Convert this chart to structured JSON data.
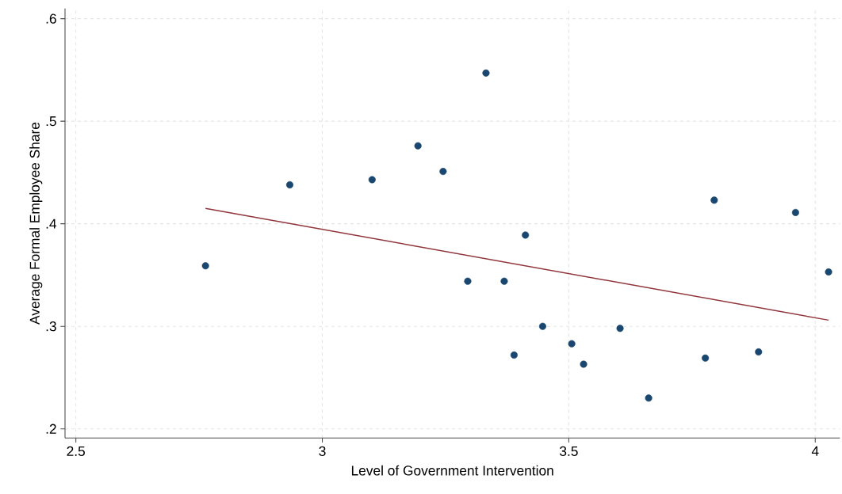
{
  "chart_data": {
    "type": "scatter",
    "xlabel": "Level of Government Intervention",
    "ylabel": "Average Formal Employee Share",
    "xlim": [
      2.478,
      4.05
    ],
    "ylim": [
      0.191,
      0.61
    ],
    "xticks": [
      2.5,
      3,
      3.5,
      4
    ],
    "yticks": [
      {
        "value": 0.2,
        "label": ".2"
      },
      {
        "value": 0.3,
        "label": ".3"
      },
      {
        "value": 0.4,
        "label": ".4"
      },
      {
        "value": 0.5,
        "label": ".5"
      },
      {
        "value": 0.6,
        "label": ".6"
      }
    ],
    "grid": true,
    "series": [
      {
        "marker": "circle",
        "color": "#1a476f",
        "x": [
          2.763,
          2.934,
          3.101,
          3.194,
          3.245,
          3.332,
          3.295,
          3.369,
          3.412,
          3.389,
          3.447,
          3.506,
          3.53,
          3.604,
          3.662,
          3.777,
          3.795,
          3.885,
          3.96,
          4.027
        ],
        "values": [
          0.359,
          0.438,
          0.443,
          0.476,
          0.451,
          0.547,
          0.344,
          0.344,
          0.389,
          0.272,
          0.3,
          0.283,
          0.263,
          0.298,
          0.23,
          0.269,
          0.423,
          0.275,
          0.411,
          0.353
        ]
      },
      {
        "type": "line",
        "marker": "none",
        "color": "#90353b",
        "x": [
          2.763,
          4.027
        ],
        "values": [
          0.415,
          0.306
        ]
      }
    ]
  }
}
